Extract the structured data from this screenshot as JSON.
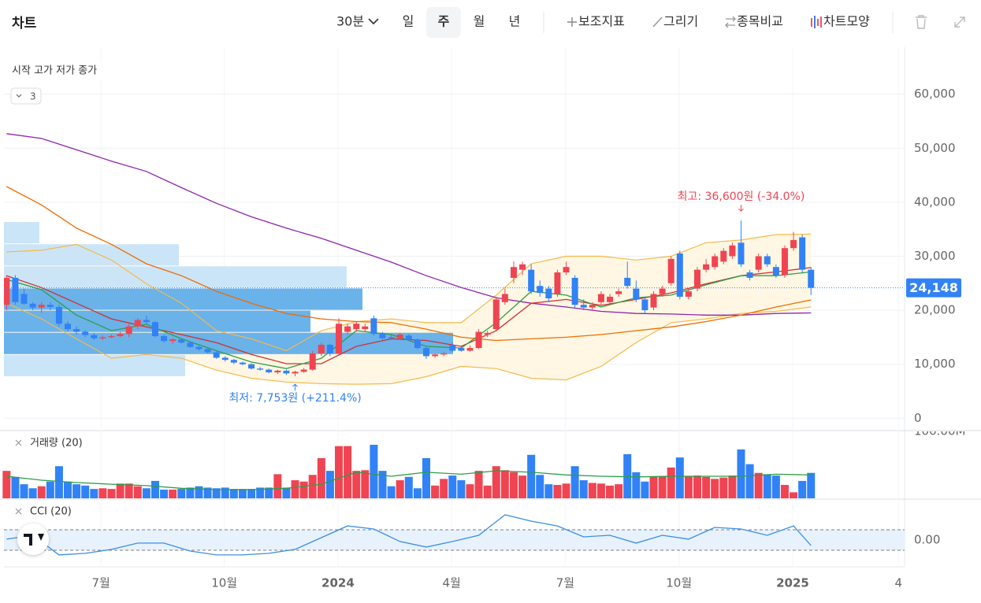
{
  "toolbar": {
    "title": "차트",
    "interval": "30분",
    "periods": [
      "일",
      "주",
      "월",
      "년"
    ],
    "selected": 1,
    "tools": [
      "보조지표",
      "그리기",
      "종목비교",
      "차트모양"
    ]
  },
  "chart_data": [
    {
      "type": "candlestick",
      "legend": "시작 고가 저가 종가",
      "indicator_count": 3,
      "up_color": "#f04452",
      "down_color": "#3182f6",
      "ohlc": [
        [
          21000,
          26500,
          20000,
          26000
        ],
        [
          26000,
          26500,
          21000,
          21500
        ],
        [
          23000,
          24000,
          21000,
          21200
        ],
        [
          21200,
          21500,
          20000,
          20500
        ],
        [
          20500,
          21500,
          19500,
          21000
        ],
        [
          21000,
          21500,
          20000,
          20600
        ],
        [
          20600,
          21000,
          17000,
          17500
        ],
        [
          17500,
          18000,
          16000,
          16500
        ],
        [
          16500,
          17000,
          15500,
          16000
        ],
        [
          16000,
          16300,
          15000,
          15400
        ],
        [
          15400,
          15800,
          14500,
          14800
        ],
        [
          14800,
          15300,
          14500,
          15000
        ],
        [
          15000,
          15500,
          14800,
          15200
        ],
        [
          15200,
          16000,
          15000,
          15600
        ],
        [
          15600,
          17500,
          15000,
          17000
        ],
        [
          17000,
          18500,
          16500,
          18200
        ],
        [
          18200,
          19000,
          17500,
          17800
        ],
        [
          17800,
          18000,
          15000,
          15200
        ],
        [
          15200,
          15500,
          14000,
          14300
        ],
        [
          14300,
          14800,
          13800,
          14600
        ],
        [
          14600,
          14800,
          13800,
          14000
        ],
        [
          14000,
          14200,
          13000,
          13200
        ],
        [
          13200,
          13500,
          12500,
          12800
        ],
        [
          12800,
          13000,
          12000,
          12200
        ],
        [
          12200,
          12500,
          11000,
          11200
        ],
        [
          11200,
          11500,
          10500,
          10800
        ],
        [
          10800,
          11000,
          10000,
          10300
        ],
        [
          10300,
          10500,
          9800,
          10000
        ],
        [
          10000,
          10200,
          9000,
          9200
        ],
        [
          9200,
          9500,
          8800,
          9000
        ],
        [
          9000,
          9200,
          8300,
          8500
        ],
        [
          8500,
          9000,
          8200,
          8800
        ],
        [
          8800,
          9000,
          8000,
          8300
        ],
        [
          8300,
          8800,
          7753,
          8600
        ],
        [
          8600,
          9300,
          8400,
          9000
        ],
        [
          9000,
          12500,
          8800,
          12000
        ],
        [
          12000,
          14000,
          11500,
          13600
        ],
        [
          13600,
          13800,
          11500,
          12000
        ],
        [
          12000,
          18500,
          11800,
          17500
        ],
        [
          16000,
          17500,
          15500,
          17000
        ],
        [
          16500,
          18000,
          16000,
          17500
        ],
        [
          16500,
          17500,
          16000,
          17000
        ],
        [
          18500,
          19000,
          15300,
          15600
        ],
        [
          15600,
          16000,
          14500,
          14800
        ],
        [
          15000,
          15500,
          14500,
          14800
        ],
        [
          14800,
          15800,
          14600,
          15500
        ],
        [
          15300,
          15600,
          14300,
          14500
        ],
        [
          14500,
          14800,
          12800,
          13000
        ],
        [
          13000,
          13300,
          11000,
          11500
        ],
        [
          11500,
          12000,
          11200,
          11800
        ],
        [
          11800,
          12300,
          11500,
          12000
        ],
        [
          13500,
          14000,
          12300,
          12500
        ],
        [
          13000,
          13500,
          12300,
          12500
        ],
        [
          12500,
          13500,
          12300,
          13000
        ],
        [
          13000,
          16500,
          12800,
          16000
        ],
        [
          15500,
          16200,
          15000,
          15800
        ],
        [
          16500,
          22500,
          16300,
          22000
        ],
        [
          21500,
          24000,
          21000,
          23000
        ],
        [
          26000,
          29000,
          25000,
          28000
        ],
        [
          27500,
          29000,
          26500,
          28500
        ],
        [
          27500,
          28500,
          23000,
          23500
        ],
        [
          24500,
          25500,
          22500,
          23200
        ],
        [
          24000,
          24500,
          21500,
          22200
        ],
        [
          23000,
          27500,
          22500,
          27000
        ],
        [
          27000,
          29000,
          26500,
          28000
        ],
        [
          26000,
          26500,
          20500,
          21000
        ],
        [
          21000,
          22000,
          20000,
          20500
        ],
        [
          20500,
          21500,
          20000,
          21000
        ],
        [
          21500,
          23500,
          21000,
          23000
        ],
        [
          21500,
          23000,
          21000,
          22500
        ],
        [
          23000,
          24000,
          22500,
          23500
        ],
        [
          26000,
          29000,
          24000,
          24500
        ],
        [
          24000,
          25500,
          21500,
          22000
        ],
        [
          22000,
          22500,
          19500,
          20000
        ],
        [
          20500,
          23500,
          20000,
          23000
        ],
        [
          23000,
          24500,
          22500,
          24000
        ],
        [
          25000,
          30000,
          24500,
          29500
        ],
        [
          30500,
          31000,
          22000,
          22500
        ],
        [
          22500,
          24000,
          22000,
          23500
        ],
        [
          24000,
          28000,
          23500,
          27500
        ],
        [
          27500,
          29500,
          27000,
          28500
        ],
        [
          28000,
          30500,
          27500,
          30000
        ],
        [
          29000,
          31500,
          28500,
          31000
        ],
        [
          30000,
          32500,
          29500,
          32000
        ],
        [
          32500,
          36600,
          28000,
          28500
        ],
        [
          27000,
          27500,
          25500,
          26000
        ],
        [
          27500,
          30500,
          27000,
          30000
        ],
        [
          30000,
          30500,
          28000,
          28500
        ],
        [
          28000,
          28500,
          26000,
          26500
        ],
        [
          26500,
          32000,
          26000,
          31500
        ],
        [
          31500,
          34500,
          31000,
          33000
        ],
        [
          33500,
          34000,
          27000,
          27500
        ],
        [
          27500,
          28000,
          22800,
          24148
        ]
      ],
      "xlim": [
        -0.3,
        102.7
      ],
      "xticks": [
        {
          "value": 10.8,
          "label": "7월"
        },
        {
          "value": 24.9,
          "label": "10월"
        },
        {
          "value": 37.9,
          "label": "2024"
        },
        {
          "value": 50.9,
          "label": "4월"
        },
        {
          "value": 63.9,
          "label": "7월"
        },
        {
          "value": 76.9,
          "label": "10월"
        },
        {
          "value": 89.9,
          "label": "2025"
        },
        {
          "value": 102.0,
          "label": "4"
        }
      ],
      "ylim": [
        -2000,
        68700
      ],
      "yticks": [
        0,
        {
          "value": 10000,
          "label": "10,000"
        },
        {
          "value": 20000,
          "label": "20,000"
        },
        {
          "value": 30000,
          "label": "30,000"
        },
        {
          "value": 40000,
          "label": "40,000"
        },
        {
          "value": 50000,
          "label": "50,000"
        },
        {
          "value": 60000,
          "label": "60,000"
        }
      ],
      "grid": true,
      "last_price": {
        "value": 24148,
        "label": "24,148"
      },
      "high_label": "최고: 36,600원 (-34.0%)",
      "low_label": "최저: 7,753원 (+211.4%)",
      "overlays": {
        "x": [
          0,
          4,
          8,
          12,
          16,
          20,
          24,
          28,
          32,
          36,
          40,
          44,
          48,
          52,
          56,
          60,
          64,
          68,
          72,
          76,
          80,
          84,
          88,
          92
        ],
        "series": [
          {
            "color": "#8e24aa",
            "values": [
              52700,
              51800,
              49700,
              47600,
              45700,
              42700,
              39800,
              37300,
              35200,
              33300,
              31100,
              28900,
              26400,
              24200,
              22300,
              21300,
              20600,
              19800,
              19400,
              19300,
              19100,
              19100,
              19400,
              19500
            ]
          },
          {
            "color": "#ef6c00",
            "values": [
              42900,
              39500,
              35200,
              32200,
              28600,
              26400,
              23500,
              21300,
              19400,
              18400,
              17900,
              17700,
              16500,
              15000,
              14400,
              14700,
              15000,
              15500,
              16200,
              16900,
              17900,
              19100,
              20600,
              21900
            ]
          },
          {
            "color": "#d32f2f",
            "values": [
              26400,
              24200,
              21300,
              18400,
              16900,
              15500,
              14000,
              11800,
              10100,
              10100,
              13300,
              14700,
              14400,
              13300,
              16200,
              21300,
              22000,
              20900,
              22000,
              23200,
              24900,
              26400,
              27100,
              27900
            ]
          },
          {
            "color": "#2e9e48",
            "values": [
              25700,
              23800,
              19100,
              16200,
              17400,
              14700,
              12500,
              10400,
              9200,
              11100,
              16200,
              15500,
              13300,
              13000,
              17700,
              23500,
              22800,
              20600,
              22300,
              22800,
              24700,
              26400,
              26400,
              27100
            ]
          }
        ],
        "bands": {
          "color": "#f5b94a",
          "fill": "#fff7e3",
          "upper": [
            30800,
            31100,
            32200,
            29300,
            24900,
            21300,
            16200,
            14700,
            12500,
            16200,
            17900,
            18400,
            17700,
            17700,
            22800,
            28600,
            30000,
            30000,
            29300,
            30000,
            32500,
            33000,
            34000,
            34100
          ],
          "lower": [
            21300,
            18400,
            14700,
            11100,
            11800,
            11100,
            8900,
            7400,
            6700,
            6400,
            6300,
            6400,
            7700,
            9600,
            9200,
            7400,
            7100,
            9600,
            14000,
            17700,
            18400,
            19400,
            19800,
            20600
          ]
        }
      },
      "volume_profile": {
        "bins": [
          7700,
          11800,
          15900,
          20000,
          24100,
          28200,
          32300,
          36400
        ],
        "values": [
          230,
          570,
          389,
          455,
          435,
          222,
          45
        ],
        "xlim": [
          0,
          1143
        ],
        "colors": [
          "#c5e2f7",
          "#5aaae8",
          "#5aaae8",
          "#5aaae8",
          "#c5e2f7",
          "#c5e2f7",
          "#c5e2f7"
        ]
      }
    },
    {
      "type": "bar",
      "title": "거래량 (20)",
      "values": [
        41000000,
        32000000,
        21000000,
        15000000,
        18000000,
        25000000,
        48000000,
        25000000,
        21000000,
        19000000,
        14000000,
        15000000,
        14000000,
        22000000,
        22000000,
        18000000,
        15000000,
        26000000,
        13000000,
        13000000,
        14000000,
        16000000,
        18000000,
        16000000,
        15000000,
        16000000,
        14000000,
        14000000,
        14000000,
        16000000,
        16000000,
        36000000,
        16000000,
        27000000,
        25000000,
        35000000,
        60000000,
        41000000,
        78000000,
        78000000,
        41000000,
        42000000,
        80000000,
        41000000,
        18000000,
        27000000,
        32000000,
        15000000,
        60000000,
        19000000,
        29000000,
        34000000,
        27000000,
        21000000,
        41000000,
        19000000,
        48000000,
        42000000,
        39000000,
        34000000,
        65000000,
        35000000,
        21000000,
        20000000,
        22000000,
        48000000,
        27000000,
        23000000,
        22000000,
        19000000,
        21000000,
        66000000,
        39000000,
        25000000,
        33000000,
        33000000,
        46000000,
        61000000,
        33000000,
        34000000,
        32000000,
        29000000,
        31000000,
        34000000,
        73000000,
        51000000,
        38000000,
        36000000,
        34000000,
        20000000,
        9000000,
        26000000,
        38000000
      ],
      "ylim": [
        0,
        100000000
      ],
      "yticks": [
        {
          "value": 100000000,
          "label": "100.00M"
        }
      ],
      "ma": {
        "color": "#2e9e48",
        "x": [
          0,
          4,
          8,
          12,
          16,
          20,
          24,
          28,
          32,
          36,
          40,
          44,
          48,
          52,
          56,
          60,
          64,
          68,
          72,
          76,
          80,
          84,
          88,
          92
        ],
        "values": [
          33000000,
          27000000,
          23500000,
          21000000,
          19000000,
          15000000,
          13000000,
          13000000,
          15000000,
          21000000,
          39000000,
          33000000,
          39000000,
          36000000,
          41000000,
          39000000,
          35000000,
          33000000,
          32000000,
          33000000,
          33000000,
          33000000,
          36000000,
          35000000
        ]
      }
    },
    {
      "type": "line",
      "title": "CCI (20)",
      "color": "#3a8ee6",
      "x": [
        0,
        3,
        6,
        9,
        12,
        15,
        18,
        21,
        24,
        27,
        30,
        33,
        36,
        39,
        42,
        45,
        48,
        51,
        54,
        57,
        60,
        63,
        66,
        69,
        72,
        75,
        78,
        81,
        84,
        87,
        90,
        92
      ],
      "values": [
        8,
        46,
        -146,
        -130,
        -92,
        -30,
        -30,
        -108,
        -146,
        -146,
        -130,
        -92,
        23,
        138,
        108,
        -15,
        -69,
        -15,
        46,
        246,
        185,
        138,
        31,
        46,
        -30,
        46,
        8,
        123,
        108,
        46,
        138,
        -54
      ],
      "ylim": [
        -262,
        385
      ],
      "yticks": [
        {
          "value": 0,
          "label": "0.00"
        }
      ],
      "bands": [
        -100,
        100
      ],
      "band_fill": "#e8f2fc"
    }
  ]
}
